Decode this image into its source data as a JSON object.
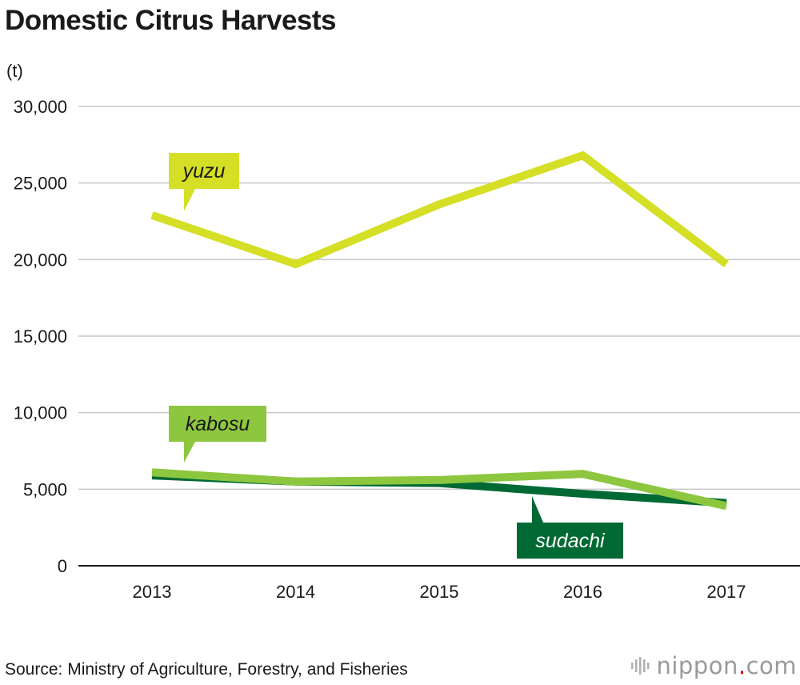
{
  "title": "Domestic Citrus Harvests",
  "unit_label": "(t)",
  "source": "Source: Ministry of Agriculture, Forestry, and Fisheries",
  "brand": {
    "name": "nippon",
    "dot": ".",
    "suffix": "com",
    "icon": "nippon-logo-icon"
  },
  "chart_data": {
    "type": "line",
    "title": "Domestic Citrus Harvests",
    "xlabel": "",
    "ylabel": "(t)",
    "categories": [
      "2013",
      "2014",
      "2015",
      "2016",
      "2017"
    ],
    "yticks": [
      "0",
      "5,000",
      "10,000",
      "15,000",
      "20,000",
      "25,000",
      "30,000"
    ],
    "ylim": [
      0,
      30000
    ],
    "grid": true,
    "series": [
      {
        "name": "sudachi",
        "values": [
          5900,
          5500,
          5400,
          4700,
          4100
        ],
        "color": "#006934",
        "label_color": "#006934",
        "label_text_color": "#ffffff"
      },
      {
        "name": "kabosu",
        "values": [
          6100,
          5500,
          5600,
          6000,
          3900
        ],
        "color": "#8dc63f",
        "label_color": "#8dc63f",
        "label_text_color": "#1a1a1a"
      },
      {
        "name": "yuzu",
        "values": [
          22900,
          19700,
          23600,
          26800,
          19700
        ],
        "color": "#d4df26",
        "label_color": "#d4df26",
        "label_text_color": "#1a1a1a"
      }
    ]
  }
}
